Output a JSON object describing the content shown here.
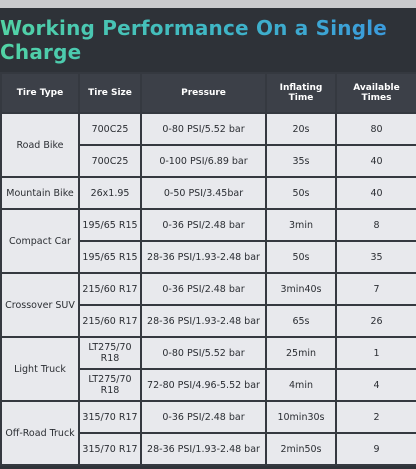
{
  "header": {
    "title": "Working Performance On a Single Charge"
  },
  "table": {
    "columns": [
      "Tire Type",
      "Tire Size",
      "Pressure",
      "Inflating Time",
      "Available Times"
    ],
    "groups": [
      {
        "type": "Road Bike",
        "rows": [
          [
            "700C25",
            "0-80 PSI/5.52 bar",
            "20s",
            "80"
          ],
          [
            "700C25",
            "0-100 PSI/6.89 bar",
            "35s",
            "40"
          ]
        ]
      },
      {
        "type": "Mountain Bike",
        "rows": [
          [
            "26x1.95",
            "0-50 PSI/3.45bar",
            "50s",
            "40"
          ]
        ]
      },
      {
        "type": "Compact Car",
        "rows": [
          [
            "195/65 R15",
            "0-36 PSI/2.48 bar",
            "3min",
            "8"
          ],
          [
            "195/65 R15",
            "28-36 PSI/1.93-2.48 bar",
            "50s",
            "35"
          ]
        ]
      },
      {
        "type": "Crossover SUV",
        "rows": [
          [
            "215/60 R17",
            "0-36 PSI/2.48 bar",
            "3min40s",
            "7"
          ],
          [
            "215/60 R17",
            "28-36 PSI/1.93-2.48 bar",
            "65s",
            "26"
          ]
        ]
      },
      {
        "type": "Light Truck",
        "rows": [
          [
            "LT275/70 R18",
            "0-80 PSI/5.52 bar",
            "25min",
            "1"
          ],
          [
            "LT275/70 R18",
            "72-80 PSI/4.96-5.52 bar",
            "4min",
            "4"
          ]
        ]
      },
      {
        "type": "Off-Road Truck",
        "rows": [
          [
            "315/70 R17",
            "0-36 PSI/2.48 bar",
            "10min30s",
            "2"
          ],
          [
            "315/70 R17",
            "28-36 PSI/1.93-2.48 bar",
            "2min50s",
            "9"
          ]
        ]
      }
    ]
  }
}
